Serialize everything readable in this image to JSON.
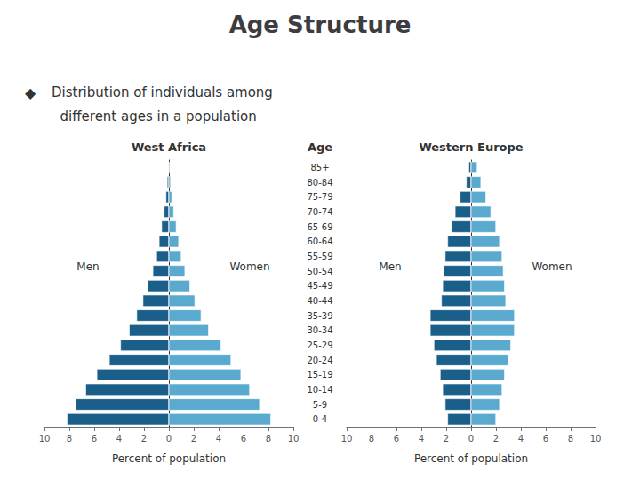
{
  "title": "Age Structure",
  "annotations": [
    "◆",
    "Distribution of individuals among",
    "  different ages in a population"
  ],
  "chart_data": [
    {
      "type": "bar",
      "orientation": "horizontal",
      "title": "West Africa",
      "xlabel": "Percent of population",
      "categories": [
        "85+",
        "80-84",
        "75-79",
        "70-74",
        "65-69",
        "60-64",
        "55-59",
        "50-54",
        "45-49",
        "40-44",
        "35-39",
        "30-34",
        "25-29",
        "20-24",
        "15-19",
        "10-14",
        "5-9",
        "0-4"
      ],
      "series": [
        {
          "name": "Men",
          "color": "#1a5f8a",
          "values": [
            0.05,
            0.15,
            0.25,
            0.4,
            0.6,
            0.8,
            1.0,
            1.3,
            1.7,
            2.1,
            2.6,
            3.2,
            3.9,
            4.8,
            5.8,
            6.7,
            7.5,
            8.2
          ]
        },
        {
          "name": "Women",
          "color": "#5aaad0",
          "values": [
            0.05,
            0.15,
            0.25,
            0.4,
            0.6,
            0.8,
            1.0,
            1.3,
            1.7,
            2.1,
            2.6,
            3.2,
            4.2,
            5.0,
            5.8,
            6.5,
            7.3,
            8.2
          ]
        }
      ],
      "xlim": [
        0,
        10
      ],
      "xticks": [
        0,
        2,
        4,
        6,
        8,
        10
      ],
      "grid": false
    },
    {
      "type": "bar",
      "orientation": "horizontal",
      "title": "Western Europe",
      "xlabel": "Percent of population",
      "ylabel": "Age",
      "categories": [
        "85+",
        "80-84",
        "75-79",
        "70-74",
        "65-69",
        "60-64",
        "55-59",
        "50-54",
        "45-49",
        "40-44",
        "35-39",
        "30-34",
        "25-29",
        "20-24",
        "15-19",
        "10-14",
        "5-9",
        "0-4"
      ],
      "series": [
        {
          "name": "Men",
          "color": "#1a5f8a",
          "values": [
            0.2,
            0.4,
            0.9,
            1.3,
            1.6,
            1.9,
            2.1,
            2.2,
            2.3,
            2.4,
            3.3,
            3.3,
            3.0,
            2.8,
            2.5,
            2.3,
            2.1,
            1.9
          ]
        },
        {
          "name": "Women",
          "color": "#5aaad0",
          "values": [
            0.5,
            0.8,
            1.2,
            1.6,
            2.0,
            2.3,
            2.5,
            2.6,
            2.7,
            2.8,
            3.5,
            3.5,
            3.2,
            3.0,
            2.7,
            2.5,
            2.3,
            2.0
          ]
        }
      ],
      "xlim": [
        0,
        10
      ],
      "xticks": [
        0,
        2,
        4,
        6,
        8,
        10
      ],
      "grid": false
    }
  ]
}
